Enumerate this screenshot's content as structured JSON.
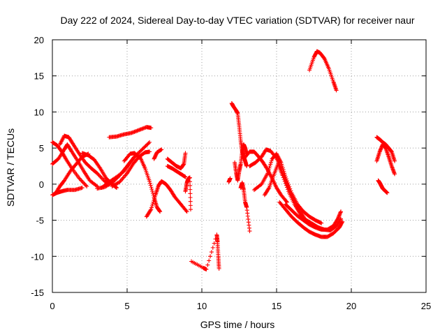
{
  "chart_data": {
    "type": "scatter",
    "title": "Day 222 of 2024, Sidereal Day-to-day VTEC variation (SDTVAR) for receiver naur",
    "xlabel": "GPS time / hours",
    "ylabel": "SDTVAR / TECUs",
    "xlim": [
      0,
      25
    ],
    "ylim": [
      -15,
      20
    ],
    "xticks": [
      0,
      5,
      10,
      15,
      20,
      25
    ],
    "yticks": [
      -15,
      -10,
      -5,
      0,
      5,
      10,
      15,
      20
    ],
    "grid": true,
    "marker": "+",
    "series_color": "#ff0000",
    "tracks": [
      {
        "name": "arc-1",
        "points": [
          [
            0.0,
            -1.5
          ],
          [
            0.3,
            -1.2
          ],
          [
            0.6,
            -1.0
          ],
          [
            1.0,
            -0.8
          ],
          [
            1.5,
            -0.8
          ],
          [
            2.0,
            -0.5
          ]
        ]
      },
      {
        "name": "arc-2",
        "points": [
          [
            0.0,
            2.8
          ],
          [
            0.4,
            3.5
          ],
          [
            0.8,
            4.8
          ],
          [
            1.0,
            5.5
          ],
          [
            1.3,
            4.5
          ],
          [
            1.7,
            3.2
          ],
          [
            2.1,
            1.8
          ],
          [
            2.5,
            0.5
          ],
          [
            3.0,
            -0.3
          ]
        ]
      },
      {
        "name": "arc-3",
        "points": [
          [
            0.0,
            5.8
          ],
          [
            0.3,
            5.4
          ],
          [
            0.6,
            4.6
          ],
          [
            0.9,
            3.5
          ],
          [
            1.3,
            2.2
          ],
          [
            1.8,
            0.8
          ],
          [
            2.3,
            -0.3
          ]
        ]
      },
      {
        "name": "arc-4",
        "points": [
          [
            0.2,
            -1.3
          ],
          [
            0.5,
            -0.3
          ],
          [
            0.8,
            0.5
          ],
          [
            1.2,
            1.8
          ],
          [
            1.6,
            2.8
          ],
          [
            2.0,
            3.8
          ],
          [
            2.4,
            4.2
          ]
        ]
      },
      {
        "name": "arc-5",
        "points": [
          [
            0.5,
            5.5
          ],
          [
            0.8,
            6.7
          ],
          [
            1.1,
            6.5
          ],
          [
            1.4,
            5.5
          ],
          [
            1.8,
            4.2
          ],
          [
            2.2,
            3.0
          ],
          [
            2.6,
            2.2
          ],
          [
            3.0,
            1.5
          ],
          [
            3.5,
            0.4
          ],
          [
            3.8,
            0.0
          ]
        ]
      },
      {
        "name": "arc-6",
        "points": [
          [
            2.0,
            4.3
          ],
          [
            2.4,
            4.0
          ],
          [
            2.8,
            3.4
          ],
          [
            3.2,
            2.2
          ],
          [
            3.6,
            0.8
          ],
          [
            4.0,
            0.0
          ],
          [
            4.3,
            -0.5
          ]
        ]
      },
      {
        "name": "arc-7",
        "points": [
          [
            3.0,
            -0.6
          ],
          [
            3.5,
            -0.4
          ],
          [
            4.0,
            0.2
          ],
          [
            4.5,
            1.2
          ],
          [
            5.0,
            2.5
          ],
          [
            5.5,
            3.8
          ],
          [
            6.0,
            4.8
          ],
          [
            6.5,
            5.8
          ]
        ]
      },
      {
        "name": "arc-8",
        "points": [
          [
            3.3,
            -0.5
          ],
          [
            3.8,
            0.3
          ],
          [
            4.3,
            1.0
          ],
          [
            4.8,
            1.8
          ],
          [
            5.2,
            3.0
          ],
          [
            5.5,
            3.8
          ]
        ]
      },
      {
        "name": "arc-9",
        "points": [
          [
            4.0,
            -0.3
          ],
          [
            4.5,
            0.3
          ],
          [
            5.0,
            1.5
          ],
          [
            5.4,
            2.8
          ],
          [
            5.8,
            3.8
          ],
          [
            6.2,
            4.4
          ],
          [
            6.5,
            4.5
          ]
        ]
      },
      {
        "name": "arc-10",
        "points": [
          [
            3.8,
            6.5
          ],
          [
            4.3,
            6.6
          ],
          [
            4.8,
            6.9
          ],
          [
            5.3,
            7.1
          ],
          [
            5.8,
            7.5
          ],
          [
            6.3,
            7.9
          ],
          [
            6.6,
            7.8
          ]
        ]
      },
      {
        "name": "arc-11",
        "points": [
          [
            4.8,
            3.2
          ],
          [
            5.2,
            4.2
          ],
          [
            5.5,
            4.3
          ],
          [
            5.9,
            3.6
          ],
          [
            6.2,
            2.2
          ],
          [
            6.5,
            0.4
          ],
          [
            6.8,
            -1.8
          ],
          [
            7.0,
            -3.2
          ],
          [
            7.2,
            -3.8
          ]
        ]
      },
      {
        "name": "arc-12",
        "points": [
          [
            6.3,
            -4.5
          ],
          [
            6.6,
            -3.5
          ],
          [
            6.9,
            -1.5
          ],
          [
            7.1,
            -0.2
          ],
          [
            7.3,
            0.4
          ],
          [
            7.6,
            0.0
          ],
          [
            7.9,
            -0.8
          ],
          [
            8.2,
            -1.8
          ],
          [
            8.6,
            -2.8
          ],
          [
            9.0,
            -3.8
          ]
        ]
      },
      {
        "name": "arc-13",
        "points": [
          [
            6.8,
            3.5
          ],
          [
            7.0,
            4.4
          ],
          [
            7.3,
            4.8
          ]
        ]
      },
      {
        "name": "arc-14",
        "points": [
          [
            7.7,
            3.5
          ],
          [
            8.0,
            3.0
          ],
          [
            8.3,
            2.5
          ],
          [
            8.6,
            2.2
          ],
          [
            8.8,
            2.8
          ],
          [
            8.9,
            4.3
          ]
        ]
      },
      {
        "name": "arc-15",
        "points": [
          [
            7.7,
            2.5
          ],
          [
            8.0,
            2.2
          ],
          [
            8.3,
            1.8
          ],
          [
            8.6,
            1.4
          ],
          [
            8.9,
            1.0
          ]
        ]
      },
      {
        "name": "arc-16",
        "points": [
          [
            8.9,
            -1.0
          ],
          [
            9.0,
            0.2
          ],
          [
            9.1,
            0.8
          ],
          [
            9.2,
            0.9
          ],
          [
            9.25,
            -3.5
          ]
        ]
      },
      {
        "name": "arc-17",
        "points": [
          [
            9.3,
            -10.7
          ],
          [
            10.1,
            -11.6
          ],
          [
            10.3,
            -11.8
          ],
          [
            11.0,
            -7.0
          ],
          [
            11.05,
            -8.0
          ],
          [
            11.1,
            -10.0
          ],
          [
            11.15,
            -11.7
          ]
        ]
      },
      {
        "name": "arc-18",
        "points": [
          [
            11.8,
            0.3
          ],
          [
            11.9,
            0.8
          ]
        ]
      },
      {
        "name": "arc-19",
        "points": [
          [
            12.0,
            11.2
          ],
          [
            12.1,
            10.8
          ],
          [
            12.3,
            10.2
          ],
          [
            12.4,
            9.8
          ],
          [
            12.5,
            8.0
          ],
          [
            12.6,
            6.0
          ],
          [
            12.7,
            4.5
          ],
          [
            12.8,
            3.8
          ],
          [
            12.9,
            3.2
          ],
          [
            13.0,
            2.5
          ]
        ]
      },
      {
        "name": "arc-20",
        "points": [
          [
            12.2,
            3.0
          ],
          [
            12.3,
            1.5
          ],
          [
            12.4,
            0.5
          ],
          [
            12.5,
            1.8
          ],
          [
            12.6,
            2.8
          ],
          [
            12.7,
            4.5
          ],
          [
            12.8,
            5.5
          ],
          [
            12.9,
            5.0
          ],
          [
            13.0,
            4.2
          ]
        ]
      },
      {
        "name": "arc-21",
        "points": [
          [
            12.6,
            -0.5
          ],
          [
            12.7,
            0.2
          ],
          [
            12.8,
            -0.8
          ],
          [
            12.9,
            -2.5
          ],
          [
            13.0,
            -3.2
          ],
          [
            13.2,
            -6.5
          ]
        ]
      },
      {
        "name": "arc-22",
        "points": [
          [
            12.8,
            3.5
          ],
          [
            13.2,
            4.5
          ],
          [
            13.5,
            4.5
          ],
          [
            13.8,
            3.8
          ],
          [
            14.1,
            3.0
          ],
          [
            14.4,
            2.0
          ],
          [
            14.7,
            0.8
          ],
          [
            15.0,
            -0.5
          ],
          [
            15.3,
            -1.5
          ],
          [
            15.7,
            -2.5
          ]
        ]
      },
      {
        "name": "arc-23",
        "points": [
          [
            13.2,
            2.5
          ],
          [
            13.6,
            3.0
          ],
          [
            14.0,
            3.8
          ],
          [
            14.3,
            4.8
          ],
          [
            14.6,
            4.6
          ],
          [
            15.0,
            3.6
          ],
          [
            15.3,
            2.2
          ],
          [
            15.6,
            0.5
          ],
          [
            16.0,
            -1.5
          ],
          [
            16.4,
            -3.2
          ],
          [
            16.8,
            -4.5
          ]
        ]
      },
      {
        "name": "arc-24",
        "points": [
          [
            13.5,
            -0.8
          ],
          [
            14.0,
            0.0
          ],
          [
            14.4,
            1.5
          ],
          [
            14.7,
            3.5
          ],
          [
            15.0,
            4.2
          ],
          [
            15.3,
            3.0
          ],
          [
            15.6,
            1.0
          ],
          [
            16.0,
            -1.2
          ],
          [
            16.4,
            -2.8
          ],
          [
            16.8,
            -3.8
          ],
          [
            17.2,
            -4.5
          ],
          [
            17.6,
            -5.0
          ],
          [
            18.0,
            -5.4
          ]
        ]
      },
      {
        "name": "arc-25",
        "points": [
          [
            14.2,
            -1.5
          ],
          [
            14.5,
            -0.5
          ],
          [
            14.8,
            1.2
          ],
          [
            15.1,
            2.8
          ],
          [
            15.4,
            1.2
          ],
          [
            15.8,
            -1.0
          ],
          [
            16.2,
            -2.8
          ],
          [
            16.6,
            -4.2
          ],
          [
            17.0,
            -5.0
          ],
          [
            17.4,
            -5.5
          ],
          [
            17.8,
            -6.0
          ],
          [
            18.2,
            -6.3
          ],
          [
            18.6,
            -6.4
          ],
          [
            19.0,
            -5.8
          ],
          [
            19.3,
            -4.8
          ]
        ]
      },
      {
        "name": "arc-26",
        "points": [
          [
            15.2,
            -2.5
          ],
          [
            15.6,
            -3.5
          ],
          [
            16.0,
            -4.5
          ],
          [
            16.4,
            -5.3
          ],
          [
            16.8,
            -6.0
          ],
          [
            17.2,
            -6.6
          ],
          [
            17.6,
            -7.0
          ],
          [
            18.0,
            -7.3
          ],
          [
            18.4,
            -7.3
          ],
          [
            18.8,
            -6.8
          ],
          [
            19.2,
            -6.0
          ],
          [
            19.4,
            -5.2
          ]
        ]
      },
      {
        "name": "arc-27",
        "points": [
          [
            15.6,
            -2.8
          ],
          [
            16.0,
            -3.6
          ],
          [
            16.4,
            -4.4
          ],
          [
            16.8,
            -5.0
          ],
          [
            17.2,
            -5.6
          ],
          [
            17.6,
            -6.0
          ],
          [
            18.0,
            -6.3
          ],
          [
            18.4,
            -6.3
          ],
          [
            18.8,
            -5.8
          ],
          [
            19.1,
            -4.8
          ],
          [
            19.3,
            -3.8
          ]
        ]
      },
      {
        "name": "arc-28",
        "points": [
          [
            17.2,
            15.8
          ],
          [
            17.5,
            17.6
          ],
          [
            17.7,
            18.4
          ],
          [
            17.9,
            18.2
          ],
          [
            18.2,
            17.4
          ],
          [
            18.5,
            16.0
          ],
          [
            18.8,
            14.2
          ],
          [
            19.0,
            13.0
          ]
        ]
      },
      {
        "name": "arc-29",
        "points": [
          [
            21.7,
            3.2
          ],
          [
            21.9,
            4.5
          ],
          [
            22.1,
            5.5
          ],
          [
            22.3,
            5.0
          ],
          [
            22.5,
            3.8
          ],
          [
            22.7,
            2.5
          ],
          [
            22.9,
            1.4
          ]
        ]
      },
      {
        "name": "arc-30",
        "points": [
          [
            21.7,
            6.5
          ],
          [
            21.9,
            6.2
          ],
          [
            22.1,
            5.8
          ],
          [
            22.3,
            5.5
          ],
          [
            22.5,
            5.0
          ],
          [
            22.7,
            4.5
          ],
          [
            22.9,
            3.2
          ]
        ]
      },
      {
        "name": "arc-31",
        "points": [
          [
            21.8,
            0.5
          ],
          [
            21.9,
            0.2
          ],
          [
            22.0,
            -0.2
          ],
          [
            22.1,
            -0.6
          ],
          [
            22.2,
            -0.8
          ],
          [
            22.4,
            -1.2
          ]
        ]
      }
    ]
  }
}
